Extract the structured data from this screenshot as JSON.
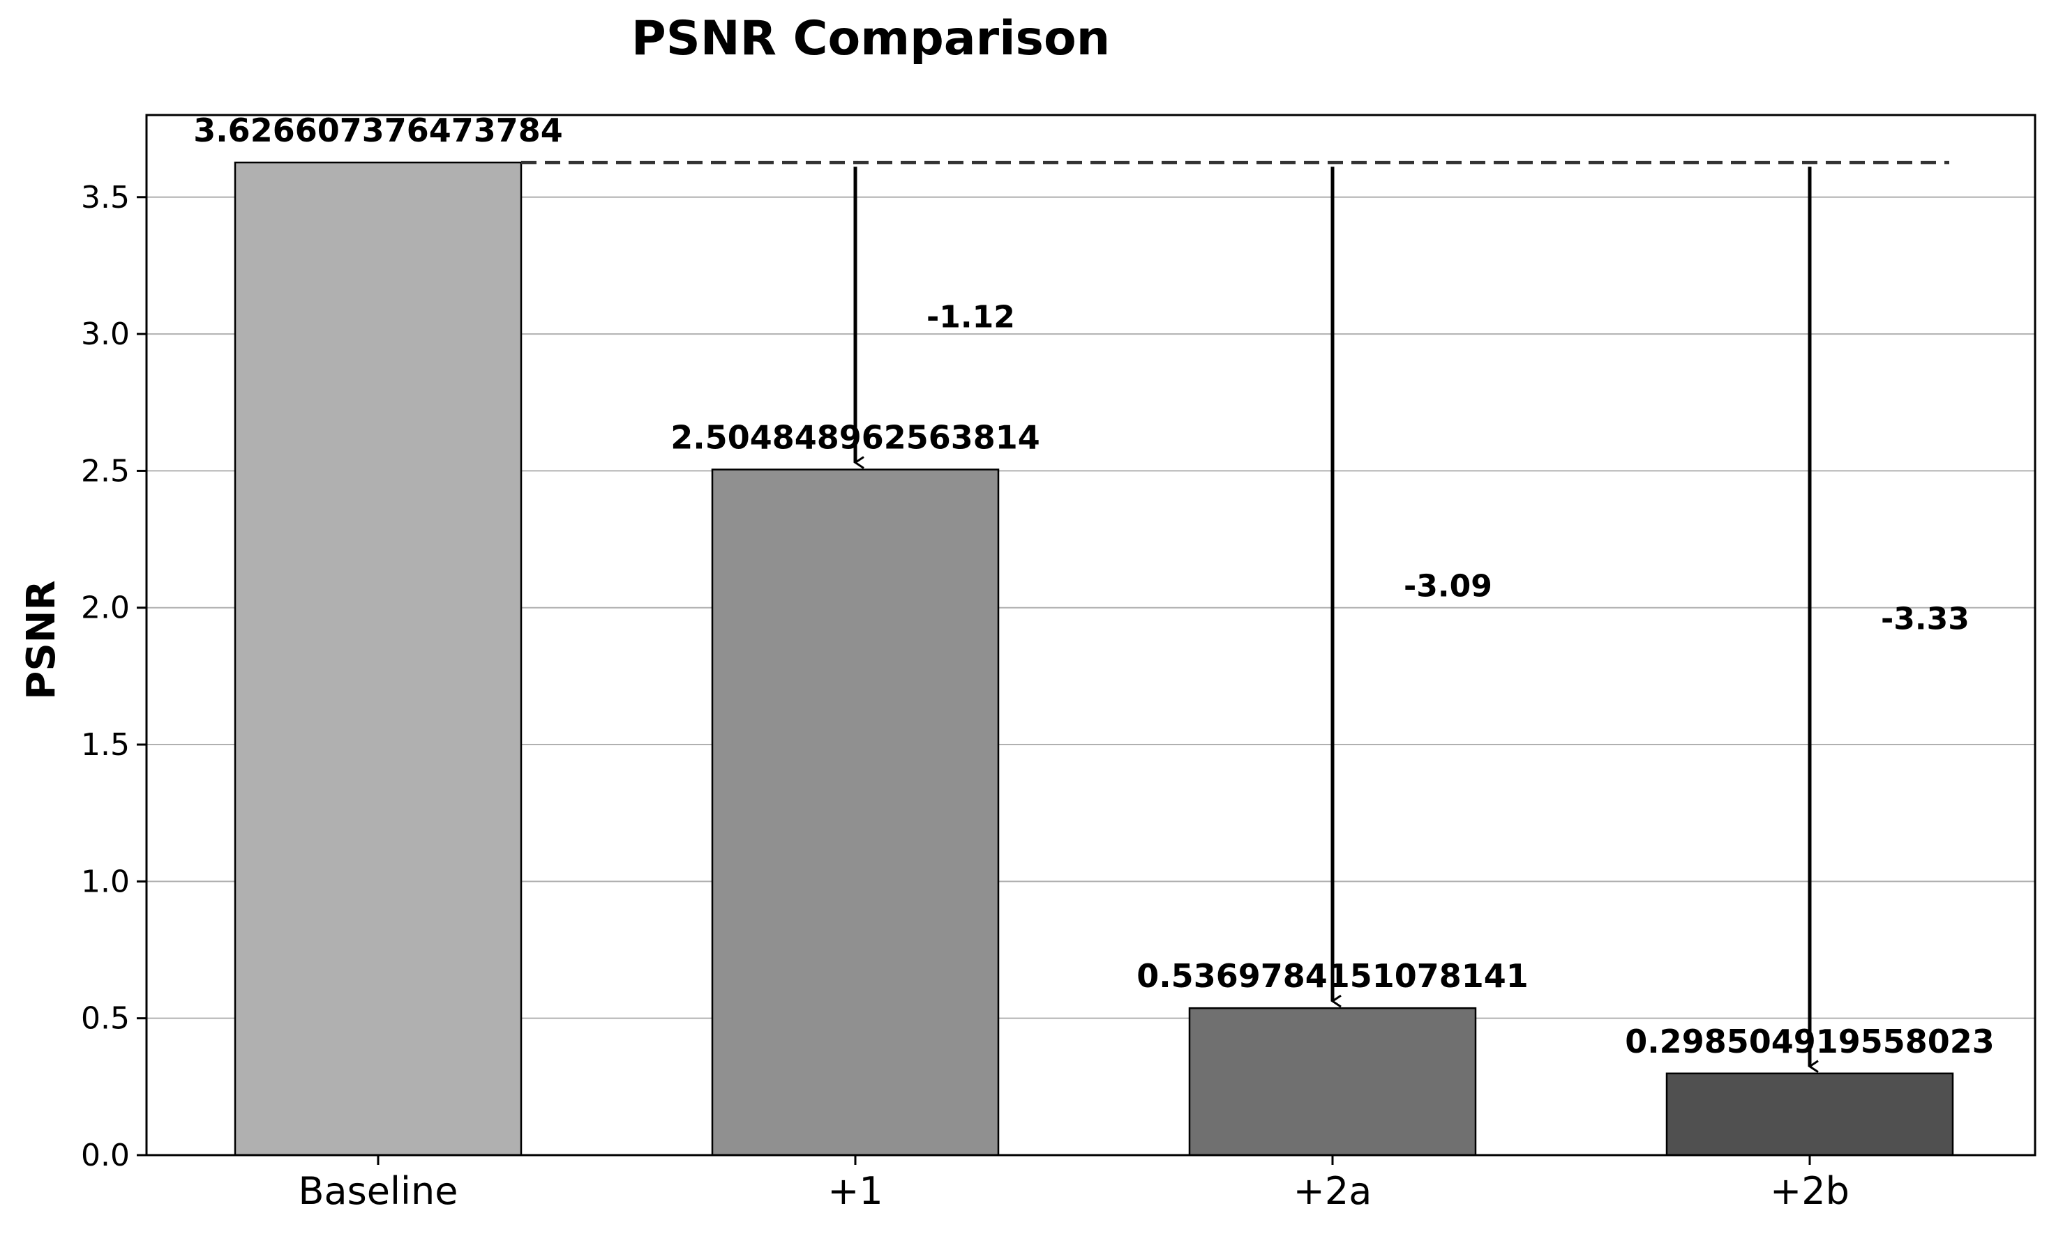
{
  "chart_data": {
    "type": "bar",
    "title": "PSNR Comparison",
    "xlabel": "",
    "ylabel": "PSNR",
    "categories": [
      "Baseline",
      "+1",
      "+2a",
      "+2b"
    ],
    "values": [
      3.626607376473784,
      2.504848962563814,
      0.5369784151078141,
      0.298504919558023
    ],
    "value_labels": [
      "3.626607376473784",
      "2.504848962563814",
      "0.5369784151078141",
      "0.298504919558023"
    ],
    "bar_colors": [
      "#b0b0b0",
      "#909090",
      "#707070",
      "#505050"
    ],
    "ylim": [
      0,
      3.8
    ],
    "yticks": [
      0.0,
      0.5,
      1.0,
      1.5,
      2.0,
      2.5,
      3.0,
      3.5
    ],
    "ytick_labels": [
      "0.0",
      "0.5",
      "1.0",
      "1.5",
      "2.0",
      "2.5",
      "3.0",
      "3.5"
    ],
    "grid": "horizontal",
    "reference_line": {
      "value": 3.626607376473784,
      "style": "dashed"
    },
    "deltas": [
      {
        "from": "Baseline",
        "to": "+1",
        "label": "-1.12"
      },
      {
        "from": "Baseline",
        "to": "+2a",
        "label": "-3.09"
      },
      {
        "from": "Baseline",
        "to": "+2b",
        "label": "-3.33"
      }
    ]
  }
}
